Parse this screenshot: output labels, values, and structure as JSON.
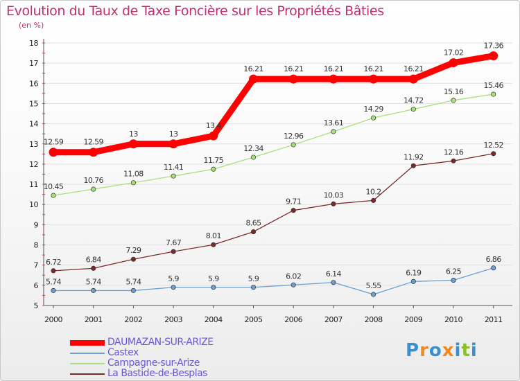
{
  "header": {
    "title": "Evolution du Taux de Taxe Foncière sur les Propriétés Bâties",
    "subtitle": "(en %)"
  },
  "brand": {
    "logo_text": "Proxiti"
  },
  "chart_data": {
    "type": "line",
    "title": "Evolution du Taux de Taxe Foncière sur les Propriétés Bâties",
    "ylabel": "(en %)",
    "xlabel": "",
    "x": [
      "2000",
      "2001",
      "2002",
      "2003",
      "2004",
      "2005",
      "2006",
      "2007",
      "2008",
      "2009",
      "2010",
      "2011"
    ],
    "ylim": [
      5,
      18
    ],
    "yticks": [
      5,
      6,
      7,
      8,
      9,
      10,
      11,
      12,
      13,
      14,
      15,
      16,
      17,
      18
    ],
    "grid": "horizontal",
    "legend_position": "bottom-left",
    "series": [
      {
        "name": "DAUMAZAN-SUR-ARIZE",
        "color": "#ff0000",
        "values": [
          12.59,
          12.59,
          13,
          13,
          13.4,
          16.21,
          16.21,
          16.21,
          16.21,
          16.21,
          17.02,
          17.36
        ],
        "labels": [
          "12.59",
          "12.59",
          "13",
          "13",
          "13.4",
          "16.21",
          "16.21",
          "16.21",
          "16.21",
          "16.21",
          "17.02",
          "17.36"
        ]
      },
      {
        "name": "Castex",
        "color": "#6a9fd0",
        "values": [
          5.74,
          5.74,
          5.74,
          5.9,
          5.9,
          5.9,
          6.02,
          6.14,
          5.55,
          6.19,
          6.25,
          6.86
        ],
        "labels": [
          "5.74",
          "5.74",
          "5.74",
          "5.9",
          "5.9",
          "5.9",
          "6.02",
          "6.14",
          "5.55",
          "6.19",
          "6.25",
          "6.86"
        ]
      },
      {
        "name": "Campagne-sur-Arize",
        "color": "#a8e07a",
        "values": [
          10.45,
          10.76,
          11.08,
          11.41,
          11.75,
          12.34,
          12.96,
          13.61,
          14.29,
          14.72,
          15.16,
          15.46
        ],
        "labels": [
          "10.45",
          "10.76",
          "11.08",
          "11.41",
          "11.75",
          "12.34",
          "12.96",
          "13.61",
          "14.29",
          "14.72",
          "15.16",
          "15.46"
        ]
      },
      {
        "name": "La Bastide-de-Besplas",
        "color": "#7a2a2a",
        "values": [
          6.72,
          6.84,
          7.29,
          7.67,
          8.01,
          8.65,
          9.71,
          10.03,
          10.2,
          11.92,
          12.16,
          12.52
        ],
        "labels": [
          "6.72",
          "6.84",
          "7.29",
          "7.67",
          "8.01",
          "8.65",
          "9.71",
          "10.03",
          "10.2",
          "11.92",
          "12.16",
          "12.52"
        ]
      }
    ]
  }
}
